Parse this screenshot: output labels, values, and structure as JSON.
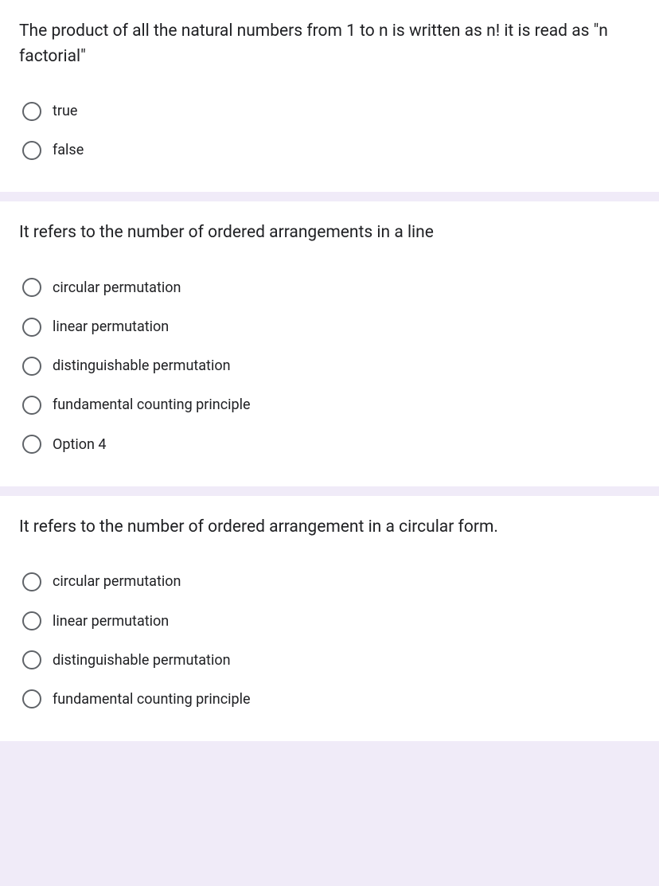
{
  "colors": {
    "page_bg": "#f0ebf8",
    "card_bg": "#ffffff",
    "text_primary": "#202124",
    "radio_border": "#5f6368"
  },
  "typography": {
    "question_fontsize": 21,
    "option_fontsize": 18,
    "font_family": "Roboto, Arial, sans-serif"
  },
  "questions": [
    {
      "prompt": "The product of all the natural numbers from 1 to n is written as n! it is read as \"n factorial\"",
      "options": [
        "true",
        "false"
      ]
    },
    {
      "prompt": "It refers to the number of ordered arrangements in a line",
      "options": [
        "circular permutation",
        "linear permutation",
        "distinguishable permutation",
        "fundamental counting principle",
        "Option 4"
      ]
    },
    {
      "prompt": "It refers to the number of ordered arrangement in a circular form.",
      "options": [
        "circular permutation",
        "linear permutation",
        "distinguishable permutation",
        "fundamental counting principle"
      ]
    }
  ]
}
